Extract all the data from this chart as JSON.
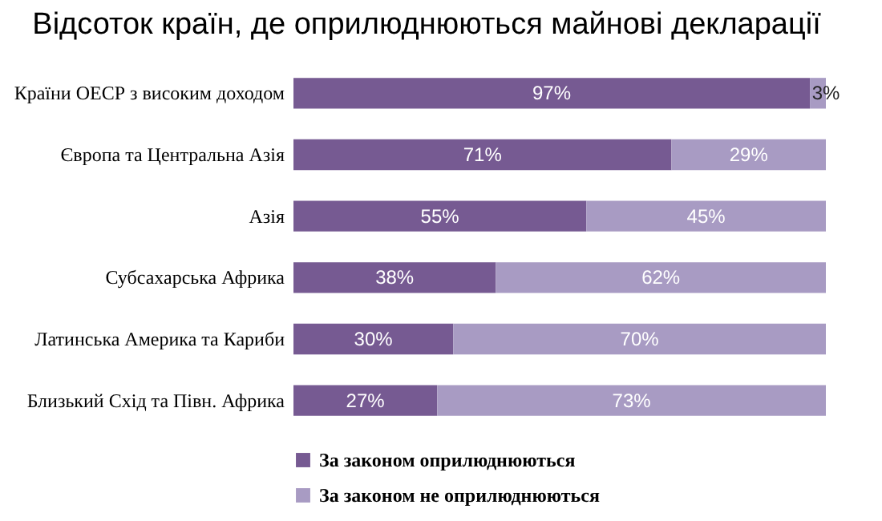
{
  "chart_data": {
    "type": "bar",
    "orientation": "horizontal",
    "stacked": true,
    "title": "Відсоток країн, де оприлюднюються майнові декларації",
    "categories": [
      "Країни ОЕСР з високим доходом",
      "Європа та Центральна Азія",
      "Азія",
      "Субсахарська Африка",
      "Латинська Америка та Кариби",
      "Близький Схід та Півн. Африка"
    ],
    "series": [
      {
        "name": "За законом оприлюднюються",
        "color": "#765a92",
        "values": [
          97,
          71,
          55,
          38,
          30,
          27
        ],
        "value_labels": [
          "97%",
          "71%",
          "55%",
          "38%",
          "30%",
          "27%"
        ]
      },
      {
        "name": "За законом не оприлюднюються",
        "color": "#a89bc3",
        "values": [
          3,
          29,
          45,
          62,
          70,
          73
        ],
        "value_labels": [
          "3%",
          "29%",
          "45%",
          "62%",
          "70%",
          "73%"
        ]
      }
    ],
    "xlim": [
      0,
      100
    ],
    "legend": "bottom"
  }
}
